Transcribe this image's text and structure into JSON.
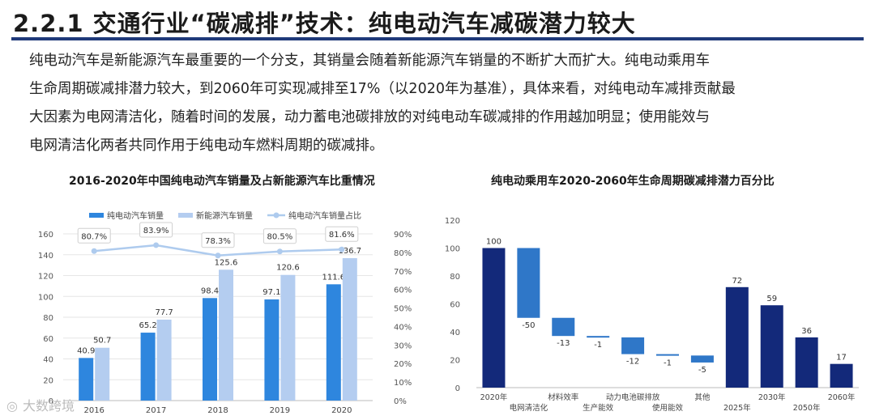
{
  "header": {
    "title": "2.2.1 交通行业“碳减排”技术：纯电动汽车减碳潜力较大"
  },
  "body": {
    "lines": [
      "纯电动汽车是新能源汽车最重要的一个分支，其销量会随着新能源汽车销量的不断扩大而扩大。纯电动乘用车",
      "生命周期碳减排潜力较大，到2060年可实现减排至17%（以2020年为基准），具体来看，对纯电动车减排贡献最",
      "大因素为电网清洁化，随着时间的发展，动力蓄电池碳排放的对纯电动车碳减排的作用越加明显；使用能效与",
      "电网清洁化两者共同作用于纯电动车燃料周期的碳减排。"
    ]
  },
  "watermark": "大数跨境",
  "chart_data": [
    {
      "type": "bar",
      "title": "2016-2020年中国纯电动汽车销量及占新能源汽车比重情况",
      "categories": [
        "2016",
        "2017",
        "2018",
        "2019",
        "2020"
      ],
      "series": [
        {
          "name": "纯电动汽车销量",
          "type": "bar",
          "values": [
            40.9,
            65.2,
            98.4,
            97.1,
            111.6
          ],
          "color": "#2e86de"
        },
        {
          "name": "新能源汽车销量",
          "type": "bar",
          "values": [
            50.7,
            77.7,
            125.6,
            120.6,
            136.7
          ],
          "color": "#b4cdf0"
        },
        {
          "name": "纯电动汽车销量占比",
          "type": "line",
          "values": [
            80.7,
            83.9,
            78.3,
            80.5,
            81.6
          ],
          "labels": [
            "80.7%",
            "83.9%",
            "78.3%",
            "80.5%",
            "81.6%"
          ],
          "color": "#aecbee"
        }
      ],
      "ylim": [
        0,
        160
      ],
      "yticks": [
        "0",
        "20",
        "40",
        "60",
        "80",
        "100",
        "120",
        "140",
        "160"
      ],
      "y2lim": [
        0,
        90
      ],
      "y2ticks": [
        "0%",
        "10%",
        "20%",
        "30%",
        "40%",
        "50%",
        "60%",
        "70%",
        "80%",
        "90%"
      ],
      "legend": "top",
      "grid": true
    },
    {
      "type": "bar",
      "title": "纯电动乘用车2020-2060年生命周期碳减排潜力百分比",
      "categories": [
        "2020年",
        "电网清洁化",
        "材料效率",
        "生产能效",
        "动力电池碳排放",
        "使用能效",
        "其他",
        "2025年",
        "2030年",
        "2050年",
        "2060年"
      ],
      "values": [
        100,
        -50,
        -13,
        -1,
        -12,
        -1,
        -5,
        72,
        59,
        36,
        17
      ],
      "value_labels": [
        "100",
        "-50",
        "-13",
        "-1",
        "-12",
        "-1",
        "-5",
        "72",
        "59",
        "36",
        "17"
      ],
      "kinds": [
        "total",
        "delta",
        "delta",
        "delta",
        "delta",
        "delta",
        "delta",
        "total",
        "total",
        "total",
        "total"
      ],
      "ylim": [
        0,
        120
      ],
      "yticks": [
        "0",
        "20",
        "40",
        "60",
        "80",
        "100",
        "120"
      ],
      "colors": {
        "total": "#13297a",
        "delta": "#2f77c8"
      },
      "grid": false
    }
  ]
}
